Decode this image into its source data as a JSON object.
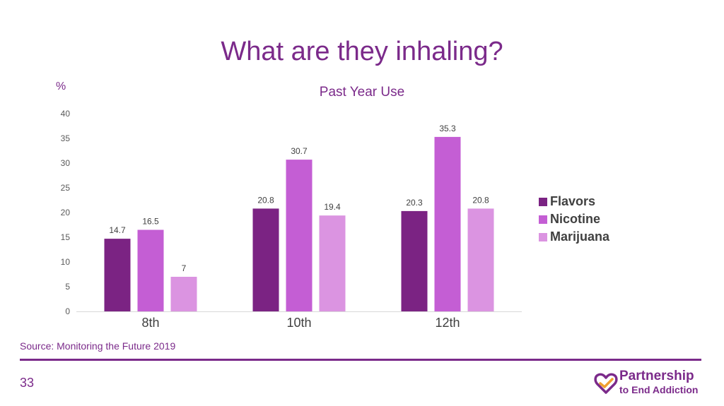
{
  "slide": {
    "title": "What are they inhaling?",
    "source": "Source: Monitoring the Future 2019",
    "page_number": "33"
  },
  "logo": {
    "line1": "Partnership",
    "line2": "to End Addiction",
    "icon": "heart-logo-icon"
  },
  "colors": {
    "accent": "#7b2a8a",
    "flavors": "#7b2383",
    "nicotine": "#c45ed4",
    "marijuana": "#db94e1"
  },
  "chart_data": {
    "type": "bar",
    "title": "Past Year Use",
    "ylabel": "%",
    "xlabel": "",
    "categories": [
      "8th",
      "10th",
      "12th"
    ],
    "series": [
      {
        "name": "Flavors",
        "values": [
          14.7,
          20.8,
          20.3
        ],
        "color": "#7b2383"
      },
      {
        "name": "Nicotine",
        "values": [
          16.5,
          30.7,
          35.3
        ],
        "color": "#c45ed4"
      },
      {
        "name": "Marijuana",
        "values": [
          7,
          19.4,
          20.8
        ],
        "color": "#db94e1"
      }
    ],
    "ylim": [
      0,
      40
    ],
    "yticks": [
      0,
      5,
      10,
      15,
      20,
      25,
      30,
      35,
      40
    ],
    "grid": false,
    "legend": "right"
  }
}
